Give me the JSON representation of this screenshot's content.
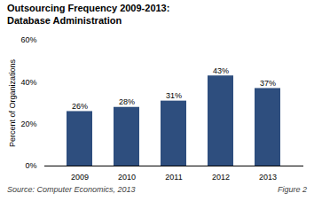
{
  "chart_data": {
    "type": "bar",
    "title": "Outsourcing Frequency 2009-2013:\nDatabase Administration",
    "categories": [
      "2009",
      "2010",
      "2011",
      "2012",
      "2013"
    ],
    "values": [
      26,
      28,
      31,
      43,
      37
    ],
    "value_labels": [
      "26%",
      "28%",
      "31%",
      "43%",
      "37%"
    ],
    "data_labels": true,
    "color": "#2E4E7E",
    "ylabel": "Percent of Organizations",
    "ylim": [
      0,
      60
    ],
    "yticks": [
      {
        "value": 0,
        "label": "0%"
      },
      {
        "value": 20,
        "label": "20%"
      },
      {
        "value": 40,
        "label": "40%"
      },
      {
        "value": 60,
        "label": "60%"
      }
    ],
    "grid": false,
    "annotations": [
      "Source:  Computer Economics, 2013",
      "Figure 2"
    ]
  }
}
